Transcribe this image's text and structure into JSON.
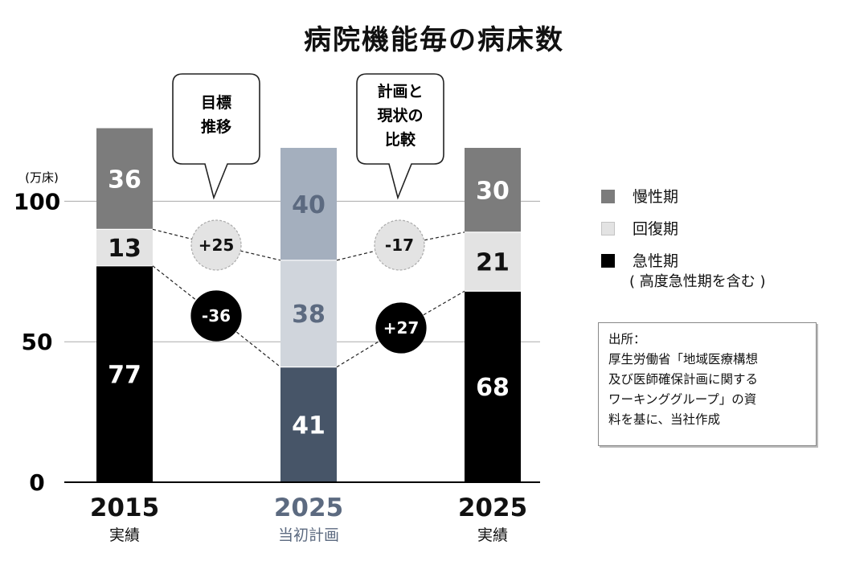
{
  "title": "病院機能毎の病床数",
  "chart_data": {
    "type": "bar",
    "stacked": true,
    "unit": "(万床)",
    "ylim": [
      0,
      127
    ],
    "yticks": [
      0,
      50,
      100
    ],
    "grid": true,
    "categories": [
      {
        "year": "2015",
        "label": "実績"
      },
      {
        "year": "2025",
        "label": "当初計画"
      },
      {
        "year": "2025",
        "label": "実績"
      }
    ],
    "series": [
      {
        "name": "急性期",
        "note": "(高度急性期を含む)",
        "values": [
          77,
          41,
          68
        ]
      },
      {
        "name": "回復期",
        "values": [
          13,
          38,
          21
        ]
      },
      {
        "name": "慢性期",
        "values": [
          36,
          40,
          30
        ]
      }
    ],
    "annotations": {
      "callouts": [
        "目標推移",
        "計画と現状の比較"
      ],
      "changes": [
        {
          "text": "+25",
          "series": "回復期",
          "from": 0,
          "to": 1
        },
        {
          "text": "-36",
          "series": "急性期",
          "from": 0,
          "to": 1
        },
        {
          "text": "-17",
          "series": "回復期",
          "from": 1,
          "to": 2
        },
        {
          "text": "+27",
          "series": "急性期",
          "from": 1,
          "to": 2
        }
      ]
    }
  },
  "legend": {
    "items": [
      {
        "label": "慢性期",
        "color": "#7c7c7c"
      },
      {
        "label": "回復期",
        "color": "#e3e3e3"
      },
      {
        "label": "急性期",
        "color": "#000000",
        "note": "( 高度急性期を含む )"
      }
    ]
  },
  "source": {
    "lines": [
      "出所：",
      "厚生労働省「地域医療構想",
      "及び医師確保計画に関する",
      "ワーキンググループ」の資",
      "料を基に、当社作成"
    ]
  },
  "colors": {
    "actual": {
      "急性期": "#000000",
      "回復期": "#e3e3e3",
      "慢性期": "#7c7c7c"
    },
    "plan": {
      "急性期": "#475568",
      "回復期": "#d0d5dc",
      "慢性期": "#a4afbe"
    },
    "actual_text": "#111111",
    "plan_text": "#5c6a80",
    "bubble_light": "#e3e3e3",
    "bubble_dark": "#000000"
  }
}
